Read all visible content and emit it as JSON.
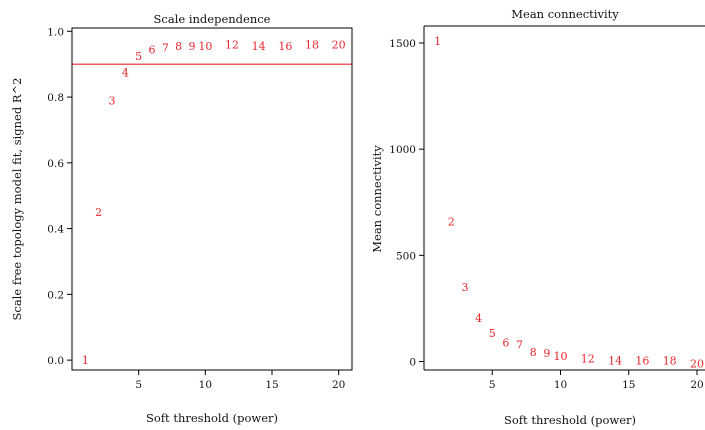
{
  "chart_data": [
    {
      "type": "scatter",
      "title": "Scale independence",
      "xlabel": "Soft threshold (power)",
      "ylabel": "Scale free topology model fit, signed R^2",
      "xlim": [
        0,
        21
      ],
      "ylim": [
        -0.03,
        1.01
      ],
      "xticks": [
        5,
        10,
        15,
        20
      ],
      "yticks": [
        0.0,
        0.2,
        0.4,
        0.6,
        0.8,
        1.0
      ],
      "ytick_labels": [
        "0.0",
        "0.2",
        "0.4",
        "0.6",
        "0.8",
        "1.0"
      ],
      "reference_line": {
        "y": 0.9
      },
      "point_color": "#e8272c",
      "points": [
        {
          "x": 1,
          "y": 0.0,
          "label": "1"
        },
        {
          "x": 2,
          "y": 0.45,
          "label": "2"
        },
        {
          "x": 3,
          "y": 0.79,
          "label": "3"
        },
        {
          "x": 4,
          "y": 0.875,
          "label": "4"
        },
        {
          "x": 5,
          "y": 0.925,
          "label": "5"
        },
        {
          "x": 6,
          "y": 0.945,
          "label": "6"
        },
        {
          "x": 7,
          "y": 0.95,
          "label": "7"
        },
        {
          "x": 8,
          "y": 0.955,
          "label": "8"
        },
        {
          "x": 9,
          "y": 0.955,
          "label": "9"
        },
        {
          "x": 10,
          "y": 0.955,
          "label": "10"
        },
        {
          "x": 12,
          "y": 0.96,
          "label": "12"
        },
        {
          "x": 14,
          "y": 0.955,
          "label": "14"
        },
        {
          "x": 16,
          "y": 0.955,
          "label": "16"
        },
        {
          "x": 18,
          "y": 0.96,
          "label": "18"
        },
        {
          "x": 20,
          "y": 0.96,
          "label": "20"
        }
      ]
    },
    {
      "type": "scatter",
      "title": "Mean connectivity",
      "xlabel": "Soft threshold (power)",
      "ylabel": "Mean connectivity",
      "xlim": [
        0,
        20
      ],
      "ylim": [
        -40,
        1580
      ],
      "xticks": [
        5,
        10,
        15,
        20
      ],
      "yticks": [
        0,
        500,
        1000,
        1500
      ],
      "ytick_labels": [
        "0",
        "500",
        "1000",
        "1500"
      ],
      "point_color": "#e8272c",
      "points": [
        {
          "x": 1,
          "y": 1510,
          "label": "1"
        },
        {
          "x": 2,
          "y": 660,
          "label": "2"
        },
        {
          "x": 3,
          "y": 350,
          "label": "3"
        },
        {
          "x": 4,
          "y": 205,
          "label": "4"
        },
        {
          "x": 5,
          "y": 135,
          "label": "5"
        },
        {
          "x": 6,
          "y": 90,
          "label": "6"
        },
        {
          "x": 7,
          "y": 80,
          "label": "7"
        },
        {
          "x": 8,
          "y": 45,
          "label": "8"
        },
        {
          "x": 9,
          "y": 40,
          "label": "9"
        },
        {
          "x": 10,
          "y": 25,
          "label": "10"
        },
        {
          "x": 12,
          "y": 15,
          "label": "12"
        },
        {
          "x": 14,
          "y": 5,
          "label": "14"
        },
        {
          "x": 16,
          "y": 5,
          "label": "16"
        },
        {
          "x": 18,
          "y": 5,
          "label": "18"
        },
        {
          "x": 20,
          "y": -10,
          "label": "20"
        }
      ]
    }
  ]
}
